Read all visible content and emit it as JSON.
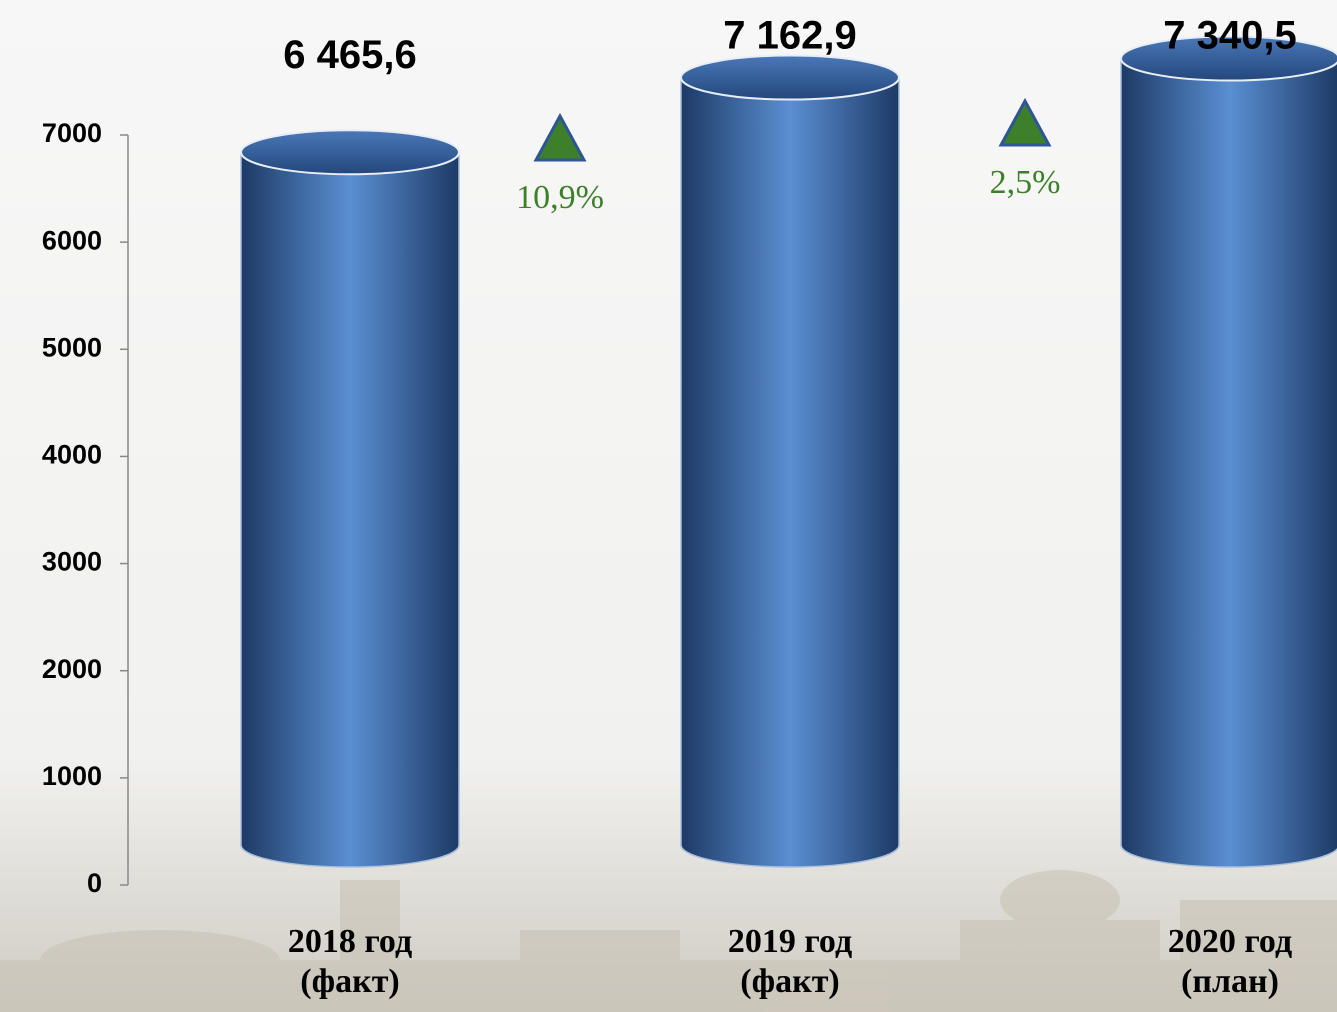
{
  "chart_data": {
    "type": "bar",
    "categories": [
      "2018 год (факт)",
      "2019 год (факт)",
      "2020 год (план)"
    ],
    "values": [
      6465.6,
      7162.9,
      7340.5
    ],
    "value_labels": [
      "6 465,6",
      "7 162,9",
      "7 340,5"
    ],
    "color": "#4a7cc0",
    "ylim": [
      0,
      7000
    ],
    "yticks": [
      0,
      1000,
      2000,
      3000,
      4000,
      5000,
      6000,
      7000
    ],
    "annotations": [
      "10,9%",
      "2,5%"
    ]
  }
}
